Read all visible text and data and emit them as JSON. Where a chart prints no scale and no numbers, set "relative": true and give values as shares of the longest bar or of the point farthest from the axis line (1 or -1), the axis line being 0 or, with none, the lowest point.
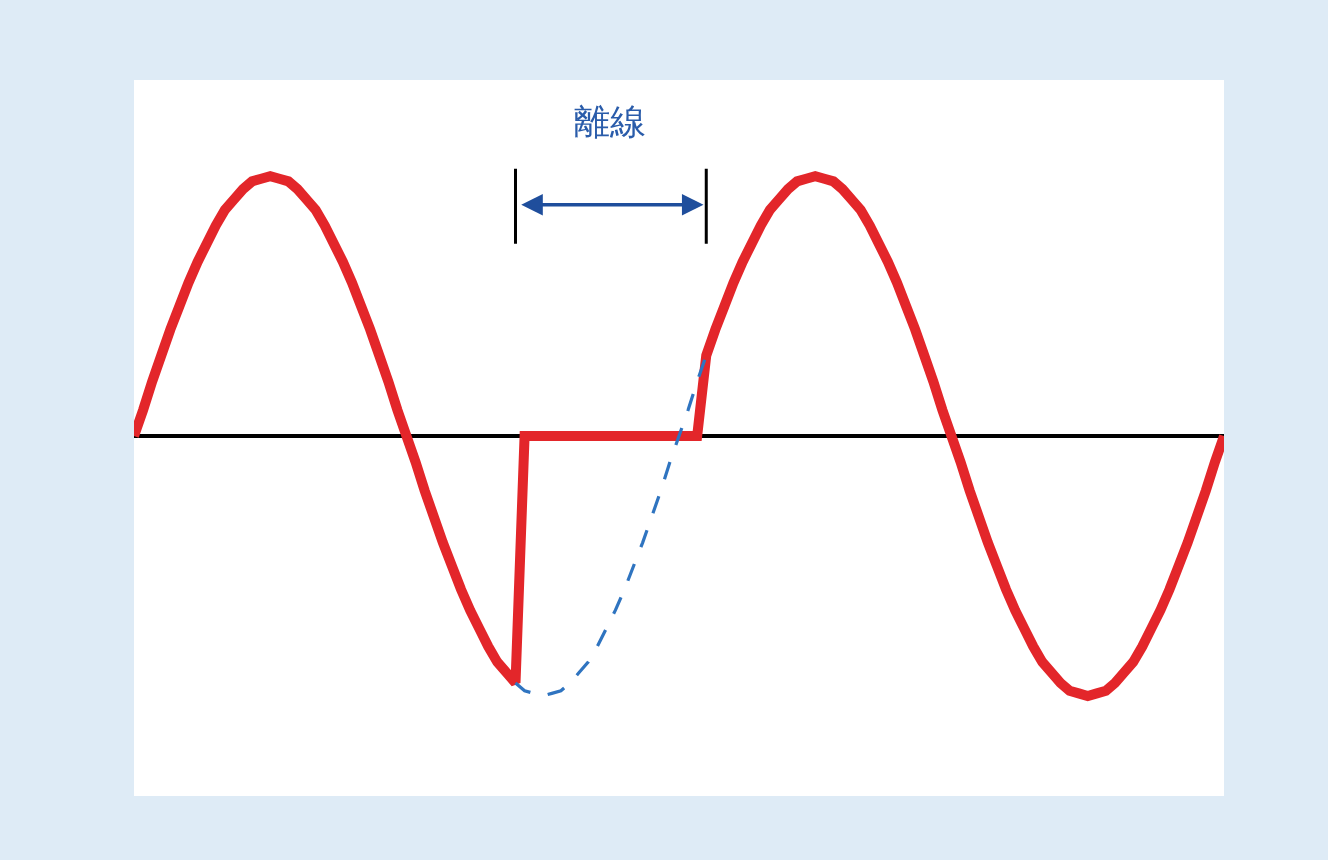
{
  "chart_data": {
    "type": "line",
    "relative": true,
    "marker": "none",
    "categories": [
      null,
      null,
      null,
      null,
      null,
      null,
      null,
      null,
      null,
      null,
      null,
      null,
      null,
      null,
      null,
      null,
      null,
      null,
      null,
      null,
      null,
      null,
      null,
      null,
      null,
      null,
      null,
      null,
      null,
      null,
      null,
      null,
      null,
      null,
      null,
      null,
      null,
      null,
      null,
      null,
      null,
      null,
      null,
      null,
      null,
      null,
      null,
      null,
      null,
      null,
      null,
      null,
      null,
      null,
      null,
      null,
      null,
      null,
      null,
      null,
      null,
      null,
      null,
      null,
      null,
      null,
      null,
      null,
      null,
      null,
      null,
      null,
      null,
      null,
      null,
      null,
      null,
      null,
      null,
      null,
      null,
      null,
      null,
      null,
      null,
      null,
      null,
      null,
      null,
      null,
      null,
      null,
      null,
      null,
      null,
      null,
      null,
      null,
      null,
      null,
      null,
      null,
      null,
      null,
      null,
      null,
      null,
      null,
      null,
      null,
      null,
      null,
      null,
      null,
      null,
      null,
      null,
      null,
      null,
      null,
      null
    ],
    "series": [
      {
        "color": "#e3262a",
        "line_style": "solid",
        "values": [
          0,
          0.1,
          0.21,
          0.31,
          0.41,
          0.5,
          0.59,
          0.67,
          0.74,
          0.81,
          0.87,
          0.91,
          0.95,
          0.98,
          0.99,
          1,
          0.99,
          0.98,
          0.95,
          0.91,
          0.87,
          0.81,
          0.74,
          0.67,
          0.59,
          0.5,
          0.41,
          0.31,
          0.21,
          0.1,
          0,
          -0.1,
          -0.21,
          -0.31,
          -0.41,
          -0.5,
          -0.59,
          -0.67,
          -0.74,
          -0.81,
          -0.87,
          -0.91,
          -0.95,
          0,
          0,
          0,
          0,
          0,
          0,
          0,
          0,
          0,
          0,
          0,
          0,
          0,
          0,
          0,
          0,
          0,
          0,
          0,
          0,
          0.31,
          0.41,
          0.5,
          0.59,
          0.67,
          0.74,
          0.81,
          0.87,
          0.91,
          0.95,
          0.98,
          0.99,
          1,
          0.99,
          0.98,
          0.95,
          0.91,
          0.87,
          0.81,
          0.74,
          0.67,
          0.59,
          0.5,
          0.41,
          0.31,
          0.21,
          0.1,
          0,
          -0.1,
          -0.21,
          -0.31,
          -0.41,
          -0.5,
          -0.59,
          -0.67,
          -0.74,
          -0.81,
          -0.87,
          -0.91,
          -0.95,
          -0.98,
          -0.99,
          -1,
          -0.99,
          -0.98,
          -0.95,
          -0.91,
          -0.87,
          -0.81,
          -0.74,
          -0.67,
          -0.59,
          -0.5,
          -0.41,
          -0.31,
          -0.21,
          -0.1,
          0
        ]
      },
      {
        "color": "#2f74c0",
        "line_style": "dashed",
        "values": [
          null,
          null,
          null,
          null,
          null,
          null,
          null,
          null,
          null,
          null,
          null,
          null,
          null,
          null,
          null,
          null,
          null,
          null,
          null,
          null,
          null,
          null,
          null,
          null,
          null,
          null,
          null,
          null,
          null,
          null,
          null,
          null,
          null,
          null,
          null,
          null,
          null,
          null,
          null,
          null,
          null,
          null,
          -0.95,
          -0.98,
          -0.99,
          -1,
          -0.99,
          -0.98,
          -0.95,
          -0.91,
          -0.87,
          -0.81,
          -0.74,
          -0.67,
          -0.59,
          -0.5,
          -0.41,
          -0.31,
          -0.21,
          -0.1,
          0,
          0.1,
          0.21,
          0.31,
          null,
          null,
          null,
          null,
          null,
          null,
          null,
          null,
          null,
          null,
          null,
          null,
          null,
          null,
          null,
          null,
          null,
          null,
          null,
          null,
          null,
          null,
          null,
          null,
          null,
          null,
          null,
          null,
          null,
          null,
          null,
          null,
          null,
          null,
          null,
          null,
          null,
          null,
          null,
          null,
          null,
          null,
          null,
          null,
          null,
          null,
          null,
          null,
          null,
          null,
          null,
          null,
          null,
          null,
          null,
          null,
          null
        ]
      }
    ],
    "annotations": [
      "離線"
    ]
  }
}
